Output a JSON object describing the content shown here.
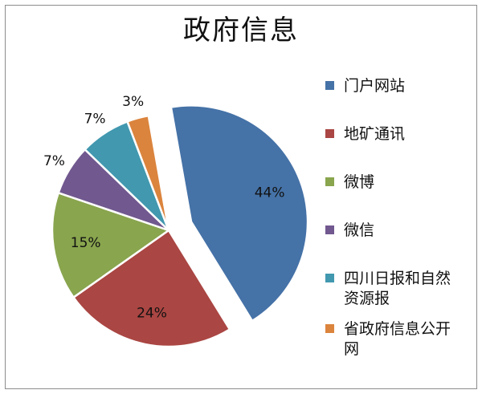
{
  "chart_data": {
    "type": "pie",
    "title": "政府信息",
    "start_angle_deg": 90,
    "direction": "clockwise-from-right-side",
    "exploded_index": 0,
    "slices": [
      {
        "label": "门户网站",
        "value": 44,
        "display": "44%",
        "color": "#4572a7"
      },
      {
        "label": "地矿通讯",
        "value": 24,
        "display": "24%",
        "color": "#aa4643"
      },
      {
        "label": "微博",
        "value": 15,
        "display": "15%",
        "color": "#89a54e"
      },
      {
        "label": "微信",
        "value": 7,
        "display": "7%",
        "color": "#71588f"
      },
      {
        "label": "四川日报和自然\n资源报",
        "value": 7,
        "display": "7%",
        "color": "#4198af"
      },
      {
        "label": "省政府信息公开\n网",
        "value": 3,
        "display": "3%",
        "color": "#db843d"
      }
    ],
    "legend_position": "right"
  }
}
